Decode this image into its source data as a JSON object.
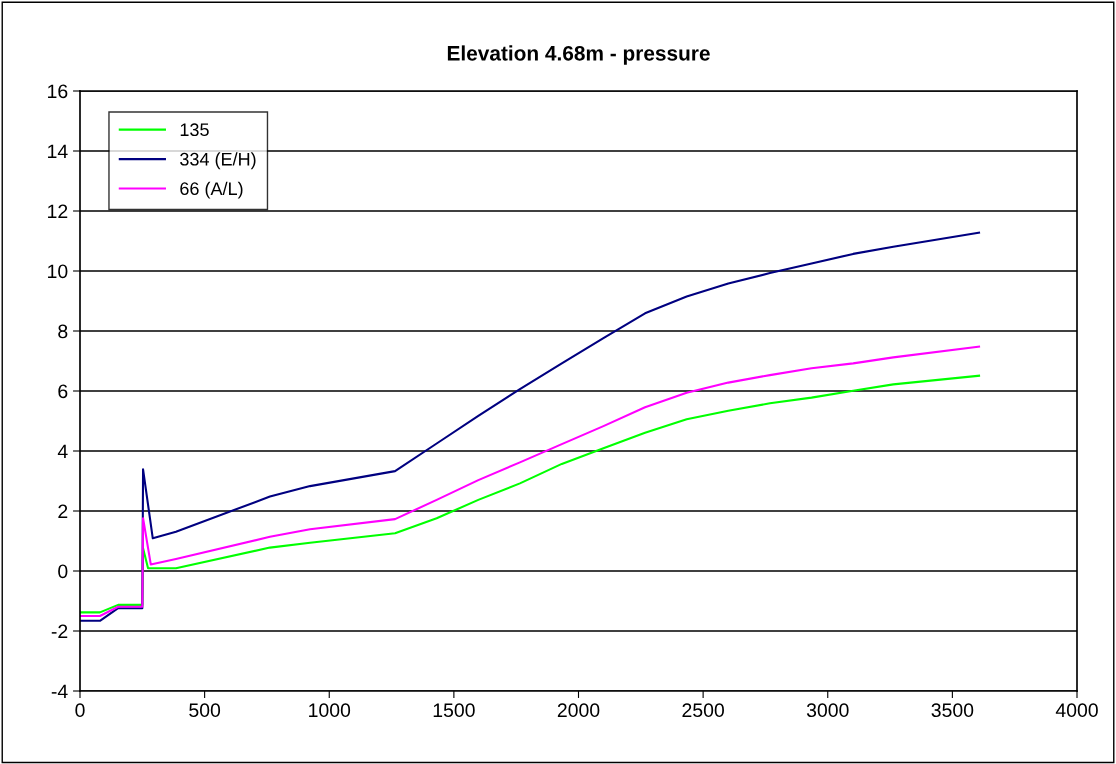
{
  "chart_data": {
    "type": "line",
    "title": "Elevation 4.68m - pressure",
    "xlim": [
      0,
      4000
    ],
    "xticks": [
      0,
      500,
      1000,
      1500,
      2000,
      2500,
      3000,
      3500,
      4000
    ],
    "ylim": [
      -4,
      16
    ],
    "yticks": [
      -4,
      -2,
      0,
      2,
      4,
      6,
      8,
      10,
      12,
      14,
      16
    ],
    "grid": "y",
    "legend": "top left",
    "marker": "none",
    "line_style": "solid",
    "series": [
      {
        "name": "135",
        "color": "#00ff00",
        "x": [
          0,
          80,
          153,
          250,
          253,
          273,
          385,
          762,
          923,
          1264,
          1431,
          1598,
          1765,
          1933,
          2100,
          2267,
          2434,
          2601,
          2768,
          2935,
          3102,
          3263,
          3607
        ],
        "values": [
          -1.38,
          -1.38,
          -1.13,
          -1.13,
          0.76,
          0.09,
          0.09,
          0.78,
          0.94,
          1.26,
          1.76,
          2.37,
          2.92,
          3.57,
          4.09,
          4.61,
          5.06,
          5.34,
          5.59,
          5.78,
          6.01,
          6.22,
          6.51
        ]
      },
      {
        "name": "334 (E/H)",
        "color": "#000080",
        "x": [
          0,
          80,
          153,
          250,
          253,
          292,
          385,
          762,
          923,
          1264,
          1431,
          1598,
          1765,
          1933,
          2100,
          2267,
          2434,
          2601,
          2768,
          2935,
          3102,
          3263,
          3607
        ],
        "values": [
          -1.66,
          -1.66,
          -1.24,
          -1.24,
          3.39,
          1.09,
          1.31,
          2.48,
          2.83,
          3.33,
          4.25,
          5.17,
          6.06,
          6.92,
          7.76,
          8.59,
          9.15,
          9.58,
          9.93,
          10.25,
          10.57,
          10.81,
          11.28
        ]
      },
      {
        "name": "66 (A/L)",
        "color": "#ff00ff",
        "x": [
          0,
          80,
          153,
          250,
          253,
          284,
          385,
          762,
          923,
          1264,
          1431,
          1598,
          1765,
          1933,
          2100,
          2267,
          2434,
          2601,
          2768,
          2935,
          3102,
          3263,
          3607
        ],
        "values": [
          -1.5,
          -1.5,
          -1.19,
          -1.19,
          1.76,
          0.22,
          0.4,
          1.14,
          1.39,
          1.73,
          2.37,
          3.03,
          3.62,
          4.23,
          4.83,
          5.46,
          5.94,
          6.28,
          6.53,
          6.76,
          6.92,
          7.12,
          7.48
        ]
      }
    ]
  }
}
